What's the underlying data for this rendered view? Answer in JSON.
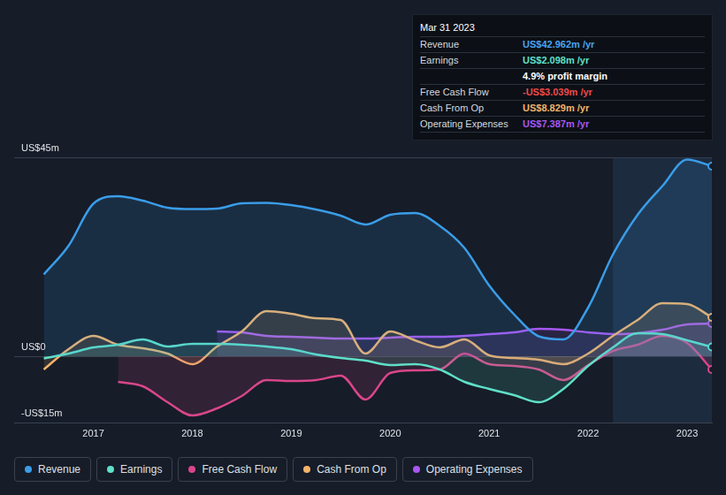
{
  "chart_data": {
    "type": "line",
    "x": [
      2016.5,
      2016.75,
      2017,
      2017.25,
      2017.5,
      2017.75,
      2018,
      2018.25,
      2018.5,
      2018.75,
      2019,
      2019.25,
      2019.5,
      2019.75,
      2020,
      2020.25,
      2020.5,
      2020.75,
      2021,
      2021.25,
      2021.5,
      2021.75,
      2022,
      2022.25,
      2022.5,
      2022.75,
      2023,
      2023.25
    ],
    "xlim": [
      2016.2,
      2023.25
    ],
    "xticks": [
      2017,
      2018,
      2019,
      2020,
      2021,
      2022,
      2023
    ],
    "ylim": [
      -15,
      45
    ],
    "yticks": [
      {
        "value": -15,
        "label": "-US$15m"
      },
      {
        "value": 0,
        "label": "US$0"
      },
      {
        "value": 45,
        "label": "US$45m"
      }
    ],
    "grid": true,
    "legend": "bottom left",
    "series": [
      {
        "name": "Revenue",
        "color": "#3a9de8",
        "values": [
          18.5,
          25,
          34.5,
          36.2,
          35.2,
          33.6,
          33.3,
          33.4,
          34.6,
          34.7,
          34.2,
          33.2,
          31.8,
          29.8,
          32,
          32.4,
          29.5,
          24.5,
          16,
          9.5,
          4.5,
          3.8,
          11,
          23,
          32,
          38.5,
          44.5,
          43.0
        ]
      },
      {
        "name": "Earnings",
        "color": "#5fe0c8",
        "values": [
          -0.5,
          0.6,
          2,
          2.6,
          3.8,
          2.2,
          2.8,
          2.8,
          2.6,
          2.2,
          1.6,
          0.4,
          -0.4,
          -1,
          -2,
          -1.8,
          -3,
          -5.8,
          -7.4,
          -8.8,
          -10.4,
          -7.4,
          -2.2,
          2,
          5.2,
          5,
          3.6,
          2.1
        ]
      },
      {
        "name": "Free Cash Flow",
        "color": "#d9468a",
        "values": [
          null,
          null,
          null,
          -5.8,
          -6.8,
          -10.4,
          -13.4,
          -11.8,
          -9,
          -5.4,
          -5.6,
          -5.4,
          -4.4,
          -9.8,
          -3.8,
          -3.2,
          -3,
          0.6,
          -1.8,
          -2.2,
          -3,
          -5.4,
          -2,
          1.2,
          2.6,
          4.6,
          3,
          -3.0
        ]
      },
      {
        "name": "Cash From Op",
        "color": "#f2b36b",
        "values": [
          -3,
          1.6,
          4.6,
          2.6,
          1.8,
          0.6,
          -1.8,
          2.2,
          5.6,
          10.2,
          9.6,
          8.6,
          8.2,
          0.6,
          5.6,
          3.6,
          2,
          3.8,
          0.2,
          -0.4,
          -0.8,
          -1.8,
          0.6,
          4.6,
          8.2,
          12,
          11.8,
          8.8
        ]
      },
      {
        "name": "Operating Expenses",
        "color": "#a857f0",
        "values": [
          null,
          null,
          null,
          null,
          null,
          null,
          null,
          5.6,
          5.4,
          4.6,
          4.4,
          4.2,
          4,
          4,
          4.2,
          4.4,
          4.4,
          4.6,
          5,
          5.4,
          6.2,
          6,
          5.4,
          5,
          5.2,
          6,
          7.2,
          7.4
        ]
      }
    ],
    "info_box": {
      "title": "Mar 31 2023",
      "rows": [
        {
          "label": "Revenue",
          "value": "US$42.962m /yr",
          "color": "#4aa3f0"
        },
        {
          "label": "Earnings",
          "value": "US$2.098m /yr",
          "color": "#5fe0c8"
        },
        {
          "value": "4.9% profit margin",
          "color": "#ffffff"
        },
        {
          "label": "Free Cash Flow",
          "value": "-US$3.039m /yr",
          "color": "#f04a4a"
        },
        {
          "label": "Cash From Op",
          "value": "US$8.829m /yr",
          "color": "#f2b36b"
        },
        {
          "label": "Operating Expenses",
          "value": "US$7.387m /yr",
          "color": "#a857f0"
        }
      ]
    }
  }
}
